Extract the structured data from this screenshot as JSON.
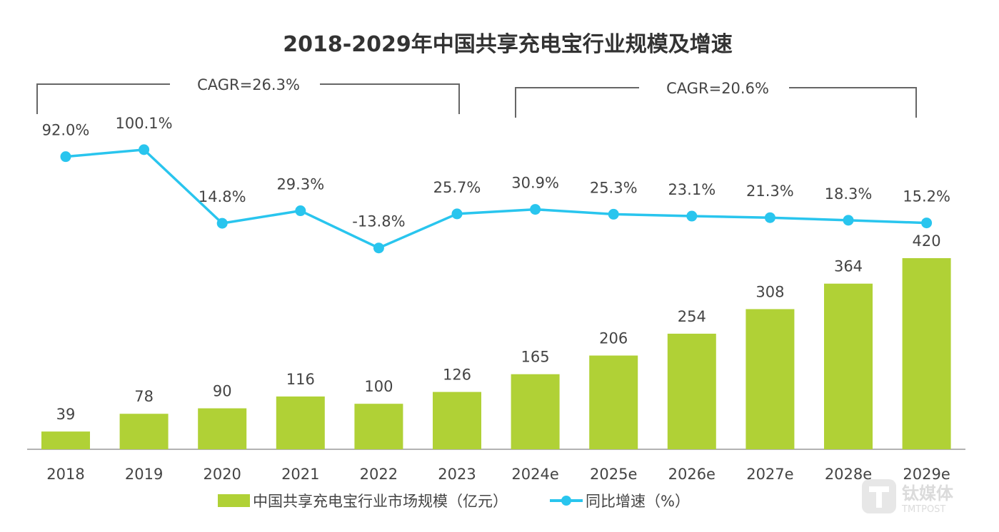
{
  "chart_data": {
    "type": "bar+line",
    "title": "2018-2029年中国共享充电宝行业规模及增速",
    "categories": [
      "2018",
      "2019",
      "2020",
      "2021",
      "2022",
      "2023",
      "2024e",
      "2025e",
      "2026e",
      "2027e",
      "2028e",
      "2029e"
    ],
    "series": [
      {
        "name": "中国共享充电宝行业市场规模（亿元）",
        "type": "bar",
        "color": "#b0d136",
        "values": [
          39,
          78,
          90,
          116,
          100,
          126,
          165,
          206,
          254,
          308,
          364,
          420
        ],
        "labels": [
          "39",
          "78",
          "90",
          "116",
          "100",
          "126",
          "165",
          "206",
          "254",
          "308",
          "364",
          "420"
        ]
      },
      {
        "name": "同比增速（%）",
        "type": "line",
        "color": "#29c5ee",
        "values": [
          92.0,
          100.1,
          14.8,
          29.3,
          -13.8,
          25.7,
          30.9,
          25.3,
          23.1,
          21.3,
          18.3,
          15.2
        ],
        "labels": [
          "92.0%",
          "100.1%",
          "14.8%",
          "29.3%",
          "-13.8%",
          "25.7%",
          "30.9%",
          "25.3%",
          "23.1%",
          "21.3%",
          "18.3%",
          "15.2%"
        ]
      }
    ],
    "annotations": [
      {
        "text": "CAGR=26.3%",
        "from": "2018",
        "to": "2023"
      },
      {
        "text": "CAGR=20.6%",
        "from": "2024e",
        "to": "2029e"
      }
    ],
    "legend_position": "bottom",
    "grid": false
  },
  "watermark": {
    "brand": "钛媒体",
    "sub": "TMTPOST"
  }
}
